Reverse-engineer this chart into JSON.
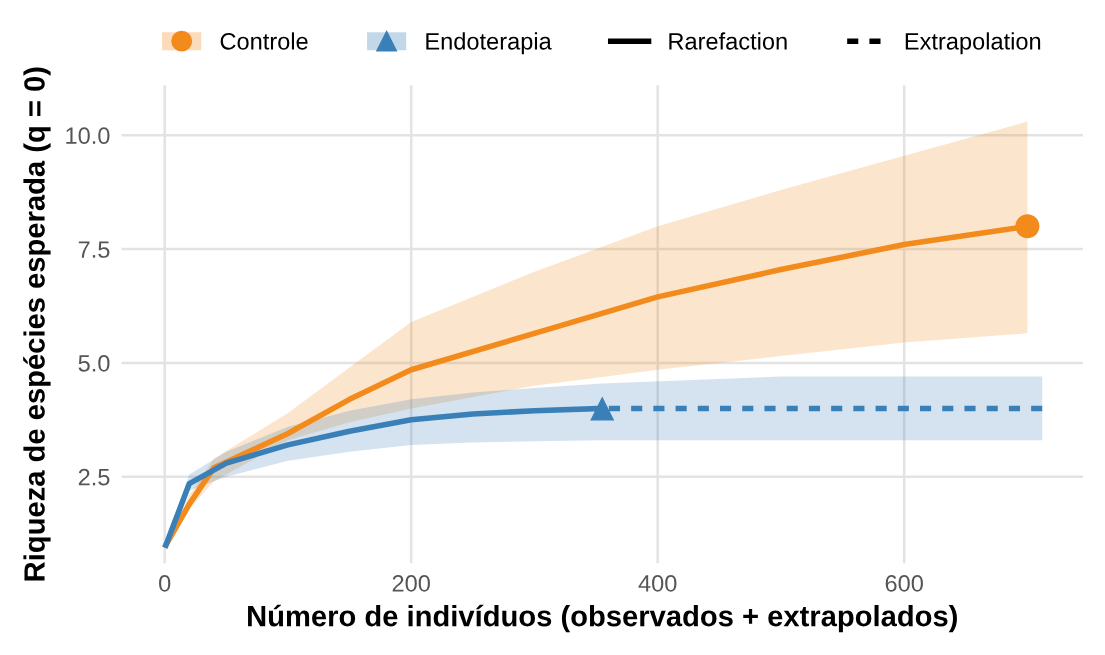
{
  "chart_data": {
    "type": "line",
    "xlabel": "Número de indivíduos (observados + extrapolados)",
    "ylabel": "Riqueza de espécies esperada (q = 0)",
    "xlim": [
      -35,
      745
    ],
    "ylim": [
      0.6,
      11.1
    ],
    "xticks": [
      0,
      200,
      400,
      600
    ],
    "yticks": [
      {
        "value": 2.5,
        "label": "2.5"
      },
      {
        "value": 5,
        "label": "5.0"
      },
      {
        "value": 7.5,
        "label": "7.5"
      },
      {
        "value": 10,
        "label": "10.0"
      }
    ],
    "grid": true,
    "legend": "top",
    "series": [
      {
        "name": "Controle",
        "color": "#f28a1c",
        "line_style": "solid",
        "x": [
          1,
          20,
          40,
          100,
          150,
          200,
          300,
          400,
          500,
          600,
          700
        ],
        "values": [
          1,
          1.9,
          2.7,
          3.45,
          4.2,
          4.85,
          5.65,
          6.45,
          7.05,
          7.6,
          8.0
        ],
        "lower": [
          1,
          1.8,
          2.4,
          3.3,
          3.7,
          4.0,
          4.5,
          4.85,
          5.15,
          5.45,
          5.65
        ],
        "upper": [
          1,
          2.1,
          2.9,
          3.9,
          4.9,
          5.9,
          7.0,
          8.0,
          8.8,
          9.55,
          10.3
        ]
      },
      {
        "name": "Endoterapia",
        "color": "#3a80b8",
        "line_style": "solid",
        "x": [
          1,
          20,
          50,
          100,
          150,
          200,
          250,
          300,
          355
        ],
        "values": [
          1,
          2.35,
          2.8,
          3.2,
          3.5,
          3.75,
          3.88,
          3.95,
          4.0
        ],
        "lower": [
          1,
          2.2,
          2.5,
          2.85,
          3.05,
          3.2,
          3.25,
          3.28,
          3.3
        ],
        "upper": [
          1,
          2.55,
          3.05,
          3.6,
          3.95,
          4.2,
          4.35,
          4.45,
          4.55
        ]
      },
      {
        "type": "scatter",
        "color": "#f28a1c",
        "marker": "circle",
        "x": [
          700
        ],
        "values": [
          8.0
        ]
      },
      {
        "type": "scatter",
        "color": "#3a80b8",
        "marker": "triangle",
        "x": [
          355
        ],
        "values": [
          4.0
        ]
      },
      {
        "color": "#3a80b8",
        "line_style": "dashed",
        "x": [
          355,
          500,
          712
        ],
        "values": [
          4.0,
          4.0,
          4.0
        ],
        "lower": [
          3.3,
          3.3,
          3.3
        ],
        "upper": [
          4.55,
          4.7,
          4.7
        ]
      }
    ],
    "annotations": [
      "Rarefaction",
      "Extrapolation"
    ]
  }
}
